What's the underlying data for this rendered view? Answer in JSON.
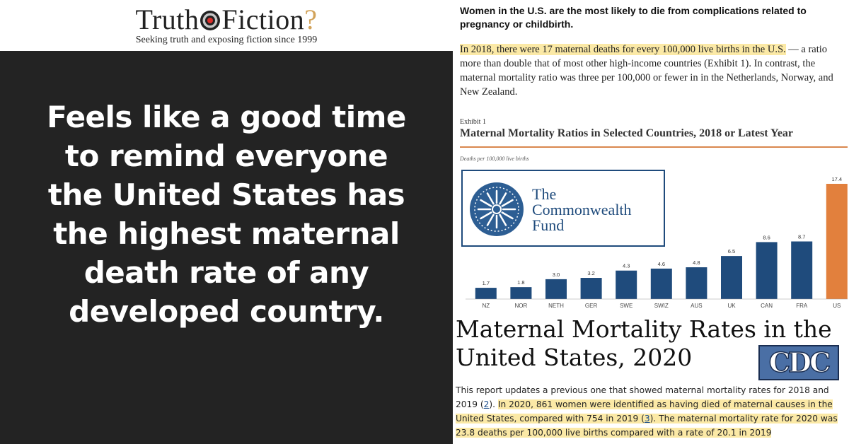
{
  "logo": {
    "brand_left": "Truth",
    "brand_or": "or",
    "brand_right": "Fiction",
    "brand_mark": "?",
    "tagline": "Seeking truth and exposing fiction since 1999"
  },
  "meme": {
    "lines": [
      "Feels like a good time",
      "to remind everyone",
      "the United States has",
      "the highest maternal",
      "death rate of any",
      "developed country."
    ]
  },
  "article": {
    "headline": "Women in the U.S. are the most likely to die from complications related to pregnancy or childbirth.",
    "para_highlight": "In 2018, there were 17 maternal deaths for every 100,000 live births in the U.S.",
    "para_rest": " — a ratio more than double that of most other high-income countries (Exhibit 1). In contrast, the maternal mortality ratio was three per 100,000 or fewer in in the Netherlands, Norway, and New Zealand."
  },
  "exhibit": {
    "label": "Exhibit 1",
    "title": "Maternal Mortality Ratios in Selected Countries, 2018 or Latest Year"
  },
  "commonwealth": {
    "name_lines": [
      "The",
      "Commonwealth",
      "Fund"
    ]
  },
  "cdc": {
    "title_lines": [
      "Maternal Mortality Rates in the",
      "United States, 2020"
    ],
    "logo_text": "CDC",
    "para_1": "This report updates a previous one that showed maternal mortality rates for 2018 and 2019 (",
    "ref_1": "2",
    "para_2": "). ",
    "hl_1": "In 2020, 861 women were identified as having died of maternal causes in the United States, compared with 754 in 2019 (",
    "ref_2": "3",
    "hl_2": "). The maternal mortality rate for 2020 was 23.8 deaths per 100,000 live births compared with a rate of 20.1 in 2019"
  },
  "colors": {
    "bar": "#1f4b7c",
    "bar_highlight": "#e2803d",
    "accent_rule": "#d9874e"
  },
  "chart_data": {
    "type": "bar",
    "title": "Maternal Mortality Ratios in Selected Countries, 2018 or Latest Year",
    "ylabel": "Deaths per 100,000 live births",
    "categories": [
      "NZ",
      "NOR",
      "NETH",
      "GER",
      "SWE",
      "SWIZ",
      "AUS",
      "UK",
      "CAN",
      "FRA",
      "US"
    ],
    "values": [
      1.7,
      1.8,
      3.0,
      3.2,
      4.3,
      4.6,
      4.8,
      6.5,
      8.6,
      8.7,
      17.4
    ],
    "value_labels": [
      "1.7",
      "1.8",
      "3.0",
      "3.2",
      "4.3",
      "4.6",
      "4.8",
      "6.5",
      "8.6",
      "8.7",
      "17.4"
    ],
    "highlight": "US",
    "ylim": [
      0,
      20
    ],
    "grid": false,
    "legend": false
  }
}
